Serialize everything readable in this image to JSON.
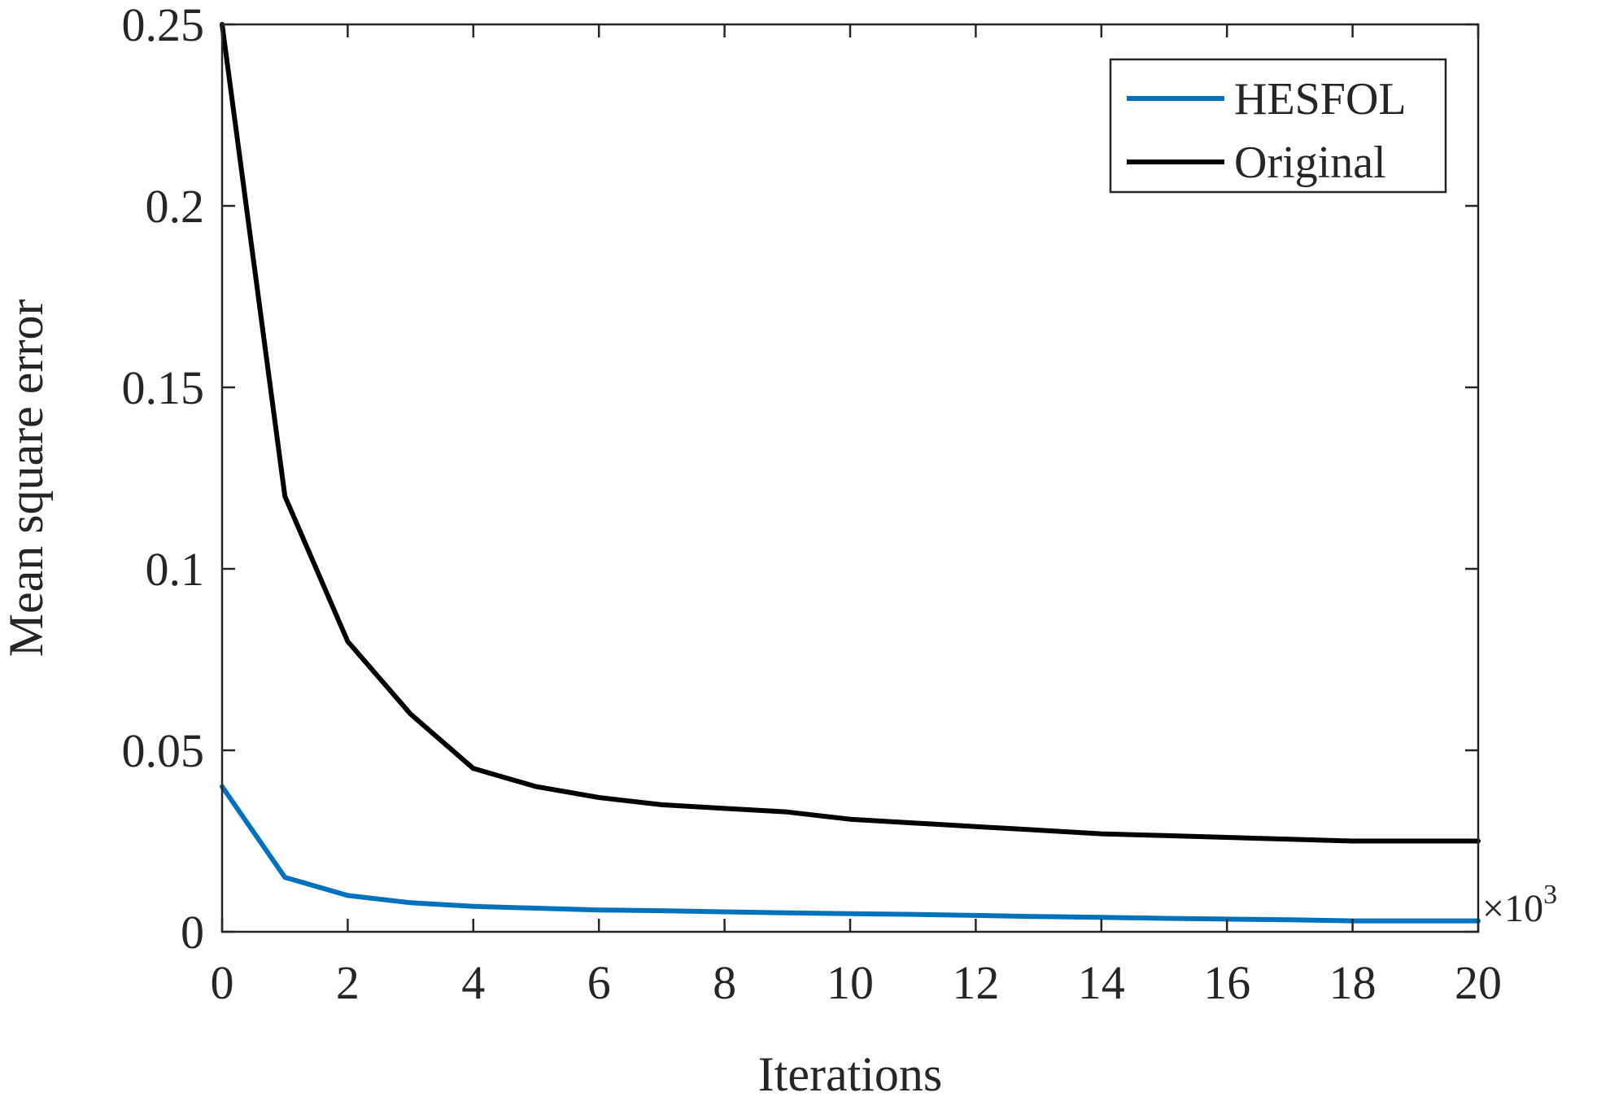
{
  "chart_data": {
    "type": "line",
    "title": "",
    "xlabel": "Iterations",
    "ylabel": "Mean square error",
    "xlim": [
      0,
      20
    ],
    "ylim": [
      0,
      0.25
    ],
    "x_multiplier_label": {
      "base": "×10",
      "exponent": "3"
    },
    "xticks": [
      "0",
      "2",
      "4",
      "6",
      "8",
      "10",
      "12",
      "14",
      "16",
      "18",
      "20"
    ],
    "yticks": [
      "0",
      "0.05",
      "0.1",
      "0.15",
      "0.2",
      "0.25"
    ],
    "grid": false,
    "legend_position": "top-right",
    "series": [
      {
        "name": "HESFOL",
        "color": "#0072BD",
        "x": [
          0,
          1,
          2,
          3,
          4,
          5,
          6,
          7,
          8,
          9,
          10,
          11,
          12,
          13,
          14,
          15,
          16,
          17,
          18,
          19,
          20
        ],
        "y": [
          0.04,
          0.015,
          0.01,
          0.008,
          0.007,
          0.0065,
          0.006,
          0.0058,
          0.0055,
          0.0052,
          0.005,
          0.0048,
          0.0045,
          0.0042,
          0.004,
          0.0037,
          0.0035,
          0.0033,
          0.003,
          0.003,
          0.003
        ]
      },
      {
        "name": "Original",
        "color": "#000000",
        "x": [
          0,
          1,
          2,
          3,
          4,
          5,
          6,
          7,
          8,
          9,
          10,
          11,
          12,
          13,
          14,
          15,
          16,
          17,
          18,
          19,
          20
        ],
        "y": [
          0.25,
          0.12,
          0.08,
          0.06,
          0.045,
          0.04,
          0.037,
          0.035,
          0.034,
          0.033,
          0.031,
          0.03,
          0.029,
          0.028,
          0.027,
          0.0265,
          0.026,
          0.0255,
          0.025,
          0.025,
          0.025
        ]
      }
    ]
  }
}
